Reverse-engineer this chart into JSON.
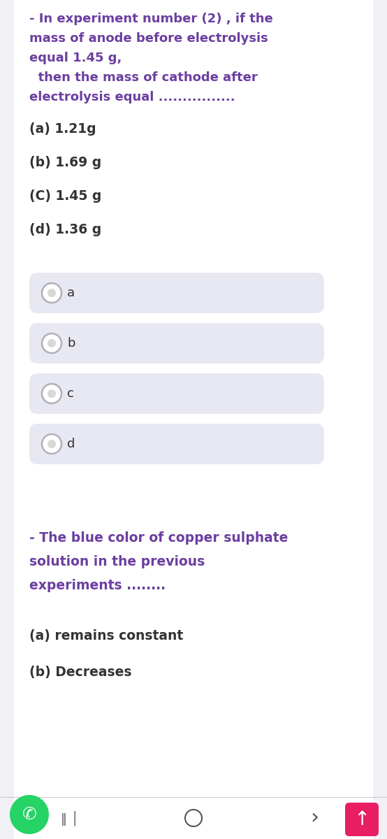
{
  "white_bg": "#ffffff",
  "light_gray_bg": "#f0f0f5",
  "text_purple": "#6b3fa0",
  "text_dark": "#333333",
  "text_gray": "#777777",
  "radio_box_bg": "#e8e8f2",
  "radio_outer_color": "#b0b0b8",
  "radio_inner_color": "#d8d8d8",
  "whatsapp_color": "#25d366",
  "arrow_box_color": "#e91e63",
  "nav_color": "#555555",
  "separator_color": "#cccccc",
  "q1_lines": [
    "- In experiment number (2) , if the",
    "mass of anode before electrolysis",
    "equal 1.45 g,",
    "  then the mass of cathode after",
    "electrolysis equal ................"
  ],
  "q1_options": [
    "(a) 1.21g",
    "(b) 1.69 g",
    "(C) 1.45 g",
    "(d) 1.36 g"
  ],
  "radio_labels": [
    "a",
    "b",
    "c",
    "d"
  ],
  "q2_lines": [
    "- The blue color of copper sulphate",
    "solution in the previous",
    "experiments ........"
  ],
  "q2_options": [
    "(a) remains constant",
    "(b) Decreases"
  ],
  "figsize": [
    5.54,
    12.0
  ],
  "dpi": 100
}
